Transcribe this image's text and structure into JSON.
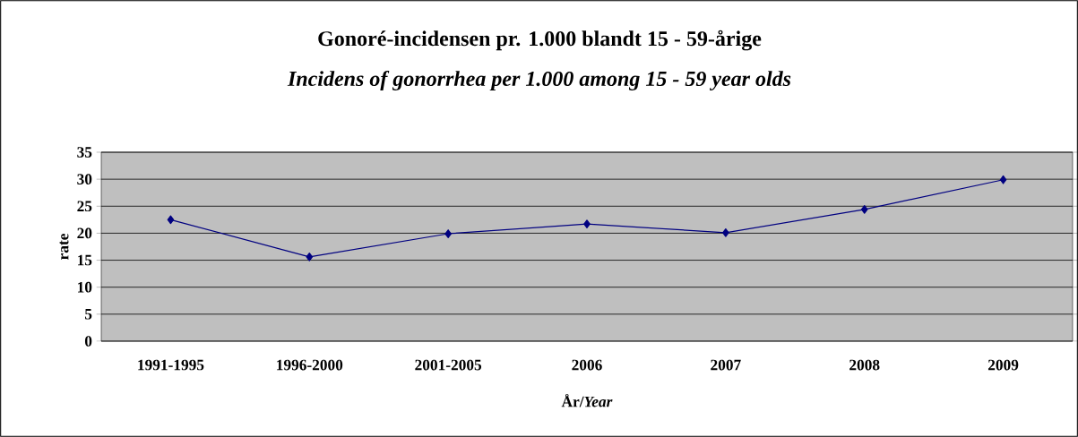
{
  "chart_data": {
    "type": "line",
    "title": "Gonoré-incidensen pr. 1.000 blandt 15 - 59-årige",
    "subtitle": "Incidens of gonorrhea per 1.000 among 15 - 59 year olds",
    "xlabel": "År/*Year*",
    "ylabel": "rate",
    "categories": [
      "1991-1995",
      "1996-2000",
      "2001-2005",
      "2006",
      "2007",
      "2008",
      "2009"
    ],
    "series": [
      {
        "color": "#000080",
        "values": [
          22.5,
          15.6,
          19.9,
          21.7,
          20.1,
          24.4,
          29.9
        ]
      }
    ],
    "ylim": [
      0,
      35
    ],
    "yticks": [
      0,
      5,
      10,
      15,
      20,
      25,
      30,
      35
    ],
    "grid": "y",
    "marker": "diamond",
    "line_style": "solid"
  }
}
